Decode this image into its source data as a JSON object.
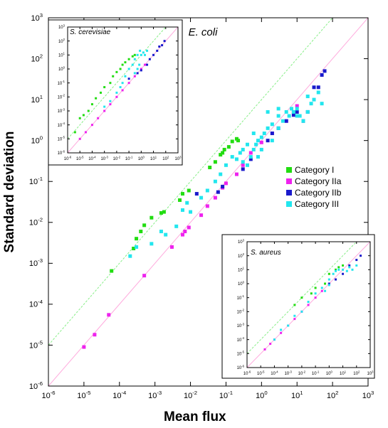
{
  "figure": {
    "xlabel": "Mean flux",
    "ylabel": "Standard deviation"
  },
  "colors": {
    "Category I": "#22dd11",
    "Category IIa": "#ee22ee",
    "Category IIb": "#1a1acc",
    "Category III": "#22e6ee",
    "ref_upper": "#88ee88",
    "ref_lower": "#ffaadd"
  },
  "chart_data": [
    {
      "panel": "main",
      "type": "scatter",
      "title": "E. coli",
      "xlabel": "Mean flux",
      "ylabel": "Standard deviation",
      "xscale": "log",
      "yscale": "log",
      "xlim_exp": [
        -6,
        3
      ],
      "ylim_exp": [
        -6,
        3
      ],
      "xticks": [
        "10-6",
        "10-5",
        "10-4",
        "10-3",
        "10-2",
        "10-1",
        "100",
        "101",
        "102",
        "103"
      ],
      "yticks": [
        "10-6",
        "10-5",
        "10-4",
        "10-3",
        "10-2",
        "10-1",
        "100",
        "101",
        "102",
        "103"
      ],
      "legend_position": "right",
      "series": [
        {
          "name": "Category I",
          "points": [
            [
              6e-05,
              0.00065
            ],
            [
              0.00025,
              0.0023
            ],
            [
              0.0003,
              0.004
            ],
            [
              0.0004,
              0.006
            ],
            [
              0.0005,
              0.0085
            ],
            [
              0.0008,
              0.013
            ],
            [
              0.0015,
              0.017
            ],
            [
              0.0018,
              0.018
            ],
            [
              0.005,
              0.035
            ],
            [
              0.006,
              0.05
            ],
            [
              0.009,
              0.06
            ],
            [
              0.035,
              0.22
            ],
            [
              0.05,
              0.3
            ],
            [
              0.07,
              0.45
            ],
            [
              0.08,
              0.5
            ],
            [
              0.09,
              0.6
            ],
            [
              0.12,
              0.7
            ],
            [
              0.15,
              0.95
            ],
            [
              0.2,
              1.1
            ],
            [
              0.22,
              1.0
            ]
          ]
        },
        {
          "name": "Category IIa",
          "points": [
            [
              1e-05,
              9e-06
            ],
            [
              2e-05,
              1.8e-05
            ],
            [
              5e-05,
              5.5e-05
            ],
            [
              0.0005,
              0.0005
            ],
            [
              0.003,
              0.0025
            ],
            [
              0.006,
              0.005
            ],
            [
              0.007,
              0.006
            ],
            [
              0.009,
              0.0075
            ],
            [
              0.02,
              0.015
            ],
            [
              0.03,
              0.025
            ],
            [
              0.05,
              0.04
            ],
            [
              0.08,
              0.07
            ],
            [
              0.1,
              0.09
            ],
            [
              0.2,
              0.15
            ],
            [
              0.3,
              0.25
            ],
            [
              0.5,
              0.5
            ],
            [
              1,
              0.9
            ],
            [
              2,
              1.5
            ],
            [
              5,
              3
            ],
            [
              8,
              5
            ],
            [
              10,
              7
            ]
          ]
        },
        {
          "name": "Category IIb",
          "points": [
            [
              0.015,
              0.05
            ],
            [
              0.06,
              0.055
            ],
            [
              0.08,
              0.075
            ],
            [
              0.3,
              0.2
            ],
            [
              0.5,
              0.35
            ],
            [
              1.5,
              1.0
            ],
            [
              2,
              1.5
            ],
            [
              3,
              2
            ],
            [
              5,
              3
            ],
            [
              8,
              4.2
            ],
            [
              10,
              5
            ],
            [
              15,
              3
            ],
            [
              20,
              5
            ],
            [
              30,
              20
            ],
            [
              40,
              20
            ],
            [
              50,
              40
            ],
            [
              60,
              50
            ]
          ]
        },
        {
          "name": "Category III",
          "points": [
            [
              0.0002,
              0.0015
            ],
            [
              0.0003,
              0.0025
            ],
            [
              0.0008,
              0.003
            ],
            [
              0.0015,
              0.006
            ],
            [
              0.002,
              0.005
            ],
            [
              0.004,
              0.008
            ],
            [
              0.006,
              0.02
            ],
            [
              0.008,
              0.03
            ],
            [
              0.01,
              0.018
            ],
            [
              0.02,
              0.04
            ],
            [
              0.03,
              0.06
            ],
            [
              0.05,
              0.1
            ],
            [
              0.07,
              0.15
            ],
            [
              0.1,
              0.25
            ],
            [
              0.15,
              0.4
            ],
            [
              0.2,
              0.35
            ],
            [
              0.25,
              0.5
            ],
            [
              0.3,
              0.6
            ],
            [
              0.3,
              0.3
            ],
            [
              0.4,
              0.25
            ],
            [
              0.5,
              0.4
            ],
            [
              0.6,
              0.6
            ],
            [
              0.7,
              0.8
            ],
            [
              0.8,
              1.0
            ],
            [
              1,
              1.2
            ],
            [
              1.2,
              1.5
            ],
            [
              1.5,
              2
            ],
            [
              2,
              2.5
            ],
            [
              2,
              1.0
            ],
            [
              3,
              2
            ],
            [
              3,
              4
            ],
            [
              4,
              3
            ],
            [
              5,
              5
            ],
            [
              6,
              4
            ],
            [
              7,
              6
            ],
            [
              8,
              5
            ],
            [
              10,
              6
            ],
            [
              12,
              4
            ],
            [
              15,
              3
            ],
            [
              20,
              5
            ],
            [
              25,
              8
            ],
            [
              30,
              10
            ],
            [
              40,
              15
            ],
            [
              50,
              8
            ],
            [
              1,
              0.6
            ],
            [
              0.8,
              0.4
            ],
            [
              0.4,
              0.8
            ],
            [
              0.6,
              1.5
            ],
            [
              1.5,
              5
            ],
            [
              3,
              6
            ],
            [
              10,
              4
            ],
            [
              20,
              12
            ]
          ]
        }
      ],
      "reference_lines": [
        "upper",
        "lower"
      ]
    },
    {
      "panel": "inset",
      "type": "scatter",
      "title": "S. cerevisiae",
      "xscale": "log",
      "yscale": "log",
      "xlim_exp": [
        -6,
        3
      ],
      "ylim_exp": [
        -6,
        3
      ],
      "xticks": [
        "10-6",
        "10-5",
        "10-4",
        "10-3",
        "10-2",
        "10-1",
        "100",
        "101",
        "102",
        "103"
      ],
      "yticks": [
        "10-6",
        "10-5",
        "10-4",
        "10-3",
        "10-2",
        "10-1",
        "100",
        "101",
        "102",
        "103"
      ],
      "series": [
        {
          "name": "Category I",
          "points": [
            [
              4e-06,
              3e-05
            ],
            [
              1e-05,
              0.0003
            ],
            [
              2e-05,
              0.0005
            ],
            [
              5e-05,
              0.001
            ],
            [
              0.0001,
              0.003
            ],
            [
              0.0002,
              0.008
            ],
            [
              0.0005,
              0.02
            ],
            [
              0.001,
              0.05
            ],
            [
              0.003,
              0.1
            ],
            [
              0.005,
              0.3
            ],
            [
              0.01,
              0.6
            ],
            [
              0.02,
              1
            ],
            [
              0.03,
              2
            ],
            [
              0.05,
              3
            ],
            [
              0.1,
              5
            ],
            [
              0.2,
              8
            ],
            [
              0.3,
              10
            ]
          ]
        },
        {
          "name": "Category IIa",
          "points": [
            [
              1e-05,
              1e-05
            ],
            [
              3e-05,
              3e-05
            ],
            [
              0.0001,
              0.0001
            ],
            [
              0.0003,
              0.0003
            ],
            [
              0.001,
              0.001
            ],
            [
              0.003,
              0.003
            ],
            [
              0.01,
              0.01
            ],
            [
              0.03,
              0.03
            ],
            [
              0.1,
              0.1
            ],
            [
              0.3,
              0.3
            ],
            [
              1,
              1
            ],
            [
              2,
              2
            ]
          ]
        },
        {
          "name": "Category IIb",
          "points": [
            [
              0.1,
              0.2
            ],
            [
              0.5,
              0.5
            ],
            [
              1,
              0.8
            ],
            [
              3,
              2
            ],
            [
              5,
              5
            ],
            [
              10,
              10
            ],
            [
              20,
              20
            ],
            [
              30,
              40
            ],
            [
              50,
              50
            ],
            [
              80,
              100
            ]
          ]
        },
        {
          "name": "Category III",
          "points": [
            [
              0.001,
              0.002
            ],
            [
              0.003,
              0.005
            ],
            [
              0.01,
              0.02
            ],
            [
              0.02,
              0.05
            ],
            [
              0.03,
              0.1
            ],
            [
              0.05,
              0.3
            ],
            [
              0.1,
              1
            ],
            [
              0.2,
              2
            ],
            [
              0.3,
              5
            ],
            [
              0.5,
              10
            ],
            [
              0.8,
              20
            ],
            [
              1,
              10
            ],
            [
              1.5,
              15
            ],
            [
              2,
              10
            ],
            [
              3,
              20
            ],
            [
              0.3,
              0.5
            ],
            [
              0.5,
              1
            ],
            [
              0.7,
              2
            ]
          ]
        }
      ],
      "reference_lines": [
        "upper",
        "lower"
      ]
    },
    {
      "panel": "inset",
      "type": "scatter",
      "title": "S. aureus",
      "xscale": "log",
      "yscale": "log",
      "xlim_exp": [
        -6,
        3
      ],
      "ylim_exp": [
        -6,
        3
      ],
      "xticks": [
        "10-6",
        "10-5",
        "10-4",
        "10-3",
        "10-2",
        "10-1",
        "100",
        "101",
        "102",
        "103"
      ],
      "yticks": [
        "10-6",
        "10-5",
        "10-4",
        "10-3",
        "10-2",
        "10-1",
        "100",
        "101",
        "102",
        "103"
      ],
      "series": [
        {
          "name": "Category I",
          "points": [
            [
              0.003,
              0.03
            ],
            [
              0.01,
              0.1
            ],
            [
              0.05,
              0.2
            ],
            [
              0.1,
              0.5
            ],
            [
              0.5,
              1
            ],
            [
              1,
              5
            ],
            [
              3,
              10
            ],
            [
              5,
              15
            ],
            [
              10,
              20
            ]
          ]
        },
        {
          "name": "Category IIa",
          "points": [
            [
              2e-05,
              2e-05
            ],
            [
              5e-05,
              5e-05
            ],
            [
              0.0001,
              0.0001
            ],
            [
              0.0003,
              0.0003
            ],
            [
              0.001,
              0.001
            ],
            [
              0.003,
              0.003
            ],
            [
              0.01,
              0.01
            ],
            [
              0.03,
              0.03
            ],
            [
              0.1,
              0.1
            ],
            [
              0.3,
              0.3
            ],
            [
              1,
              1
            ]
          ]
        },
        {
          "name": "Category IIb",
          "points": [
            [
              1,
              1
            ],
            [
              3,
              2
            ],
            [
              10,
              5
            ],
            [
              30,
              20
            ],
            [
              100,
              50
            ],
            [
              200,
              100
            ]
          ]
        },
        {
          "name": "Category III",
          "points": [
            [
              0.0001,
              0.0001
            ],
            [
              0.0003,
              0.0005
            ],
            [
              0.001,
              0.001
            ],
            [
              0.003,
              0.005
            ],
            [
              0.01,
              0.01
            ],
            [
              0.03,
              0.05
            ],
            [
              0.1,
              0.2
            ],
            [
              0.3,
              0.5
            ],
            [
              1,
              2
            ],
            [
              2,
              5
            ],
            [
              3,
              8
            ],
            [
              5,
              10
            ],
            [
              10,
              10
            ],
            [
              20,
              8
            ],
            [
              30,
              15
            ],
            [
              50,
              10
            ],
            [
              100,
              20
            ],
            [
              0.5,
              0.3
            ],
            [
              1,
              0.8
            ]
          ]
        }
      ],
      "reference_lines": [
        "upper",
        "lower"
      ]
    }
  ]
}
